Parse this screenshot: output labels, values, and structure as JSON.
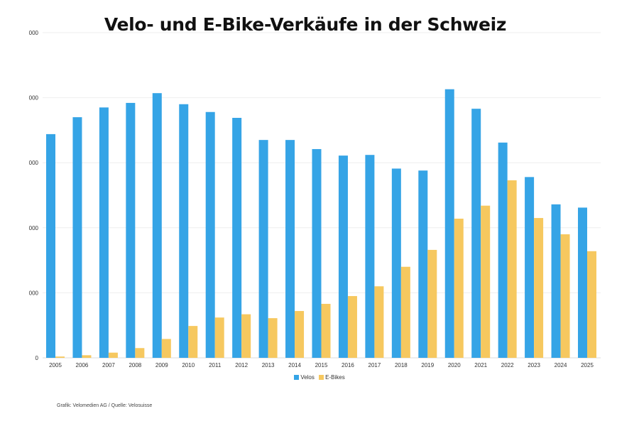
{
  "chart_data": {
    "type": "bar",
    "title": "Velo- und E-Bike-Verkäufe in der Schweiz",
    "xlabel": "",
    "ylabel": "",
    "categories": [
      "2005",
      "2006",
      "2007",
      "2008",
      "2009",
      "2010",
      "2011",
      "2012",
      "2013",
      "2014",
      "2015",
      "2016",
      "2017",
      "2018",
      "2019",
      "2020",
      "2021",
      "2022",
      "2023",
      "2024",
      "2025"
    ],
    "series": [
      {
        "name": "Velos",
        "color": "#35a4e6",
        "values": [
          344000,
          370000,
          385000,
          392000,
          407000,
          390000,
          378000,
          369000,
          335000,
          335000,
          321000,
          311000,
          312000,
          291000,
          288000,
          413000,
          383000,
          331000,
          278000,
          236000,
          231000
        ]
      },
      {
        "name": "E-Bikes",
        "color": "#f6c85f",
        "values": [
          2000,
          4000,
          8000,
          15000,
          29000,
          49000,
          62000,
          67000,
          61000,
          72000,
          83000,
          95000,
          110000,
          140000,
          166000,
          214000,
          234000,
          273000,
          215000,
          190000,
          164000
        ]
      }
    ],
    "ylim": [
      0,
      500000
    ],
    "yticks": [
      0,
      100000,
      200000,
      300000,
      400000,
      500000
    ],
    "ytick_labels": [
      "0",
      "000",
      "000",
      "000",
      "000",
      "000"
    ],
    "grid": true,
    "legend": "bottom-center",
    "source_note": "Grafik: Velomedien AG / Quelle: Velosuisse"
  }
}
